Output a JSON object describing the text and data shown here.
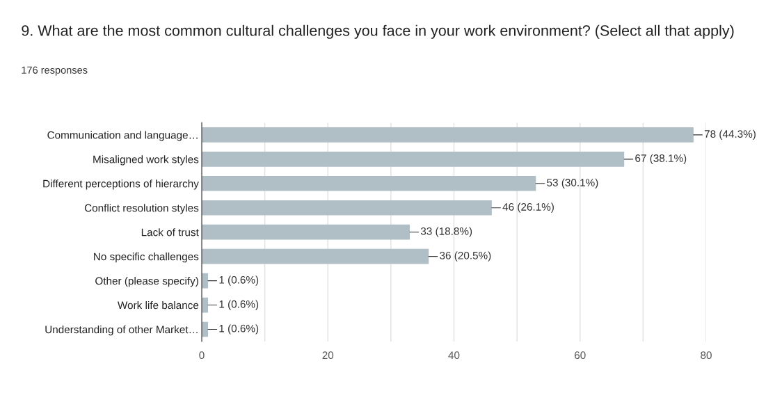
{
  "chart_data": {
    "type": "bar",
    "orientation": "horizontal",
    "title": "9. What are the most common cultural challenges you face in your work environment? (Select all that apply)",
    "subtitle": "176 responses",
    "categories": [
      "Communication and language…",
      "Misaligned work styles",
      "Different perceptions of hierarchy",
      "Conflict resolution styles",
      "Lack of trust",
      "No specific challenges",
      "Other (please specify)",
      "Work life balance",
      "Understanding of other Market…"
    ],
    "values": [
      78,
      67,
      53,
      46,
      33,
      36,
      1,
      1,
      1
    ],
    "value_labels": [
      "78 (44.3%)",
      "67 (38.1%)",
      "53 (30.1%)",
      "46 (26.1%)",
      "33 (18.8%)",
      "36 (20.5%)",
      "1 (0.6%)",
      "1 (0.6%)",
      "1 (0.6%)"
    ],
    "color": "#b0bec5",
    "xlim": [
      0,
      80
    ],
    "xticks": [
      0,
      {
        "value": 10,
        "label": null
      },
      20,
      {
        "value": 30,
        "label": null
      },
      40,
      {
        "value": 50,
        "label": null
      },
      60,
      {
        "value": 70,
        "label": null
      },
      80
    ],
    "grid": "x"
  }
}
